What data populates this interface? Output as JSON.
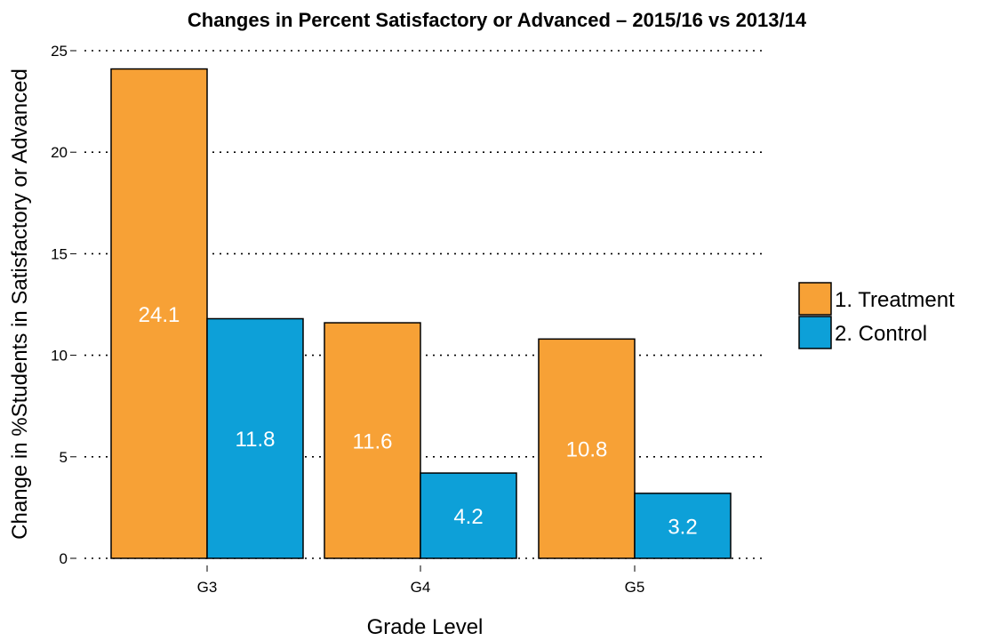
{
  "chart_data": {
    "type": "bar",
    "title": "Changes in Percent Satisfactory or Advanced – 2015/16 vs 2013/14",
    "xlabel": "Grade Level",
    "ylabel": "Change in %Students in Satisfactory or Advanced",
    "categories": [
      "G3",
      "G4",
      "G5"
    ],
    "series": [
      {
        "name": "1. Treatment",
        "color": "#F7A136",
        "values": [
          24.1,
          11.6,
          10.8
        ]
      },
      {
        "name": "2. Control",
        "color": "#0DA0D8",
        "values": [
          11.8,
          4.2,
          3.2
        ]
      }
    ],
    "ylim": [
      0,
      25
    ],
    "yticks": [
      0,
      5,
      10,
      15,
      20,
      25
    ],
    "grid": true,
    "grid_style": "dotted horizontal",
    "legend_position": "right",
    "data_labels": true,
    "data_label_color": "#ffffff"
  }
}
